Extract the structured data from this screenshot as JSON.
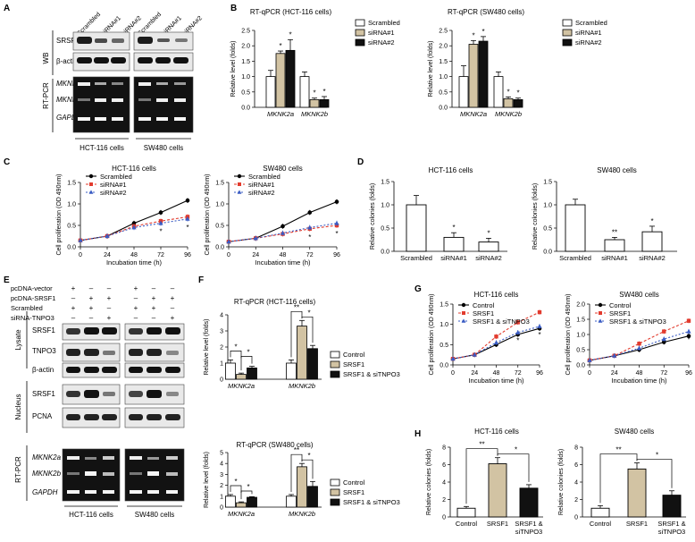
{
  "panel_letters": [
    "A",
    "B",
    "C",
    "D",
    "E",
    "F",
    "G",
    "H"
  ],
  "colors": {
    "scrambled": "#ffffff",
    "sirna1": "#d2c3a3",
    "sirna2": "#111111",
    "control": "#ffffff",
    "srsf1": "#d2c3a3",
    "srsf1_sitnpo3": "#111111",
    "line_black": "#000000",
    "line_red": "#e23b2e",
    "line_blue": "#3a5cc4"
  },
  "panel_a": {
    "lane_labels": [
      "Scrambled",
      "siRNA#1",
      "siRNA#2",
      "Scrambled",
      "siRNA#1",
      "siRNA#2"
    ],
    "group_wb": "WB",
    "group_rtpcr": "RT-PCR",
    "row_labels": [
      "SRSF1",
      "β-actin",
      "MKNK2a",
      "MKNK2b",
      "GAPDH"
    ],
    "cell_labels": [
      "HCT-116 cells",
      "SW480 cells"
    ]
  },
  "panel_e": {
    "conditions": [
      {
        "label": "pcDNA-vector",
        "signs": [
          "+",
          "–",
          "–",
          "+",
          "–",
          "–"
        ]
      },
      {
        "label": "pcDNA-SRSF1",
        "signs": [
          "–",
          "+",
          "+",
          "–",
          "+",
          "+"
        ]
      },
      {
        "label": "Scrambled",
        "signs": [
          "+",
          "+",
          "–",
          "+",
          "+",
          "–"
        ]
      },
      {
        "label": "siRNA-TNPO3",
        "signs": [
          "–",
          "–",
          "+",
          "–",
          "–",
          "+"
        ]
      }
    ],
    "group_lysate": "Lysate",
    "group_nucleus": "Nucleus",
    "group_rtpcr": "RT-PCR",
    "row_labels": [
      "SRSF1",
      "TNPO3",
      "β-actin",
      "SRSF1",
      "PCNA",
      "MKNK2a",
      "MKNK2b",
      "GAPDH"
    ],
    "cell_labels": [
      "HCT-116 cells",
      "SW480 cells"
    ]
  },
  "chart_data": [
    {
      "id": "B1",
      "type": "bar",
      "title": "RT-qPCR (HCT-116 cells)",
      "ylabel": "Relative level (folds)",
      "ylim": [
        0,
        2.5
      ],
      "yticks": [
        "0.0",
        "0.5",
        "1.0",
        "1.5",
        "2.0",
        "2.5"
      ],
      "categories": [
        "MKNK2a",
        "MKNK2b"
      ],
      "series": [
        {
          "name": "Scrambled",
          "values": [
            1.0,
            1.0
          ],
          "errors": [
            0.2,
            0.15
          ]
        },
        {
          "name": "siRNA#1",
          "values": [
            1.75,
            0.25
          ],
          "errors": [
            0.08,
            0.05
          ]
        },
        {
          "name": "siRNA#2",
          "values": [
            1.85,
            0.25
          ],
          "errors": [
            0.35,
            0.1
          ]
        }
      ],
      "annotations": [
        "*",
        "*",
        "*",
        "*"
      ]
    },
    {
      "id": "B2",
      "type": "bar",
      "title": "RT-qPCR (SW480 cells)",
      "ylabel": "Relative level (folds)",
      "ylim": [
        0,
        2.5
      ],
      "yticks": [
        "0.0",
        "0.5",
        "1.0",
        "1.5",
        "2.0",
        "2.5"
      ],
      "categories": [
        "MKNK2a",
        "MKNK2b"
      ],
      "series": [
        {
          "name": "Scrambled",
          "values": [
            1.0,
            1.0
          ],
          "errors": [
            0.35,
            0.15
          ]
        },
        {
          "name": "siRNA#1",
          "values": [
            2.05,
            0.28
          ],
          "errors": [
            0.12,
            0.06
          ]
        },
        {
          "name": "siRNA#2",
          "values": [
            2.15,
            0.25
          ],
          "errors": [
            0.15,
            0.05
          ]
        }
      ],
      "annotations": [
        "*",
        "*",
        "*",
        "*"
      ]
    },
    {
      "id": "C1",
      "type": "line",
      "title": "HCT-116 cells",
      "xlabel": "Incubation time (h)",
      "ylabel": "Cell proliferation (OD 490nm)",
      "x": [
        0,
        24,
        48,
        72,
        96
      ],
      "xlim": [
        0,
        96
      ],
      "ylim": [
        0,
        1.5
      ],
      "xticks": [
        "0",
        "24",
        "48",
        "72",
        "96"
      ],
      "yticks": [
        "0.0",
        "0.5",
        "1.0",
        "1.5"
      ],
      "series": [
        {
          "name": "Scrambled",
          "values": [
            0.15,
            0.25,
            0.55,
            0.8,
            1.08
          ]
        },
        {
          "name": "siRNA#1",
          "values": [
            0.15,
            0.25,
            0.48,
            0.6,
            0.7
          ]
        },
        {
          "name": "siRNA#2",
          "values": [
            0.15,
            0.25,
            0.45,
            0.55,
            0.65
          ]
        }
      ],
      "annotations": [
        "*",
        "*"
      ]
    },
    {
      "id": "C2",
      "type": "line",
      "title": "SW480 cells",
      "xlabel": "Incubation time (h)",
      "ylabel": "Cell proliferation (OD 490nm)",
      "x": [
        0,
        24,
        48,
        72,
        96
      ],
      "xlim": [
        0,
        96
      ],
      "ylim": [
        0,
        1.5
      ],
      "xticks": [
        "0",
        "24",
        "48",
        "72",
        "96"
      ],
      "yticks": [
        "0.0",
        "0.5",
        "1.0",
        "1.5"
      ],
      "series": [
        {
          "name": "Scrambled",
          "values": [
            0.12,
            0.2,
            0.48,
            0.8,
            1.05
          ]
        },
        {
          "name": "siRNA#1",
          "values": [
            0.12,
            0.2,
            0.3,
            0.42,
            0.5
          ]
        },
        {
          "name": "siRNA#2",
          "values": [
            0.12,
            0.2,
            0.32,
            0.45,
            0.55
          ]
        }
      ],
      "annotations": [
        "*",
        "*"
      ]
    },
    {
      "id": "D1",
      "type": "bar",
      "title": "HCT-116 cells",
      "ylabel": "Relative colonies (folds)",
      "ylim": [
        0,
        1.5
      ],
      "yticks": [
        "0.0",
        "0.5",
        "1.0",
        "1.5"
      ],
      "categories": [
        "Scrambled",
        "siRNA#1",
        "siRNA#2"
      ],
      "series": [
        {
          "name": "",
          "values": [
            1.0,
            0.3,
            0.2
          ],
          "errors": [
            0.2,
            0.1,
            0.08
          ]
        }
      ],
      "annotations": [
        "*",
        "*"
      ]
    },
    {
      "id": "D2",
      "type": "bar",
      "title": "SW480 cells",
      "ylabel": "Relative colonies (folds)",
      "ylim": [
        0,
        1.5
      ],
      "yticks": [
        "0.0",
        "0.5",
        "1.0",
        "1.5"
      ],
      "categories": [
        "Scrambled",
        "siRNA#1",
        "siRNA#2"
      ],
      "series": [
        {
          "name": "",
          "values": [
            1.0,
            0.25,
            0.42
          ],
          "errors": [
            0.12,
            0.05,
            0.12
          ]
        }
      ],
      "annotations": [
        "**",
        "*"
      ]
    },
    {
      "id": "F1",
      "type": "bar",
      "title": "RT-qPCR (HCT-116 cells)",
      "ylabel": "Relative level (folds)",
      "ylim": [
        0,
        4
      ],
      "yticks": [
        "0",
        "1",
        "2",
        "3",
        "4"
      ],
      "categories": [
        "MKNK2a",
        "MKNK2b"
      ],
      "series": [
        {
          "name": "Control",
          "values": [
            1.0,
            1.0
          ],
          "errors": [
            0.2,
            0.2
          ]
        },
        {
          "name": "SRSF1",
          "values": [
            0.3,
            3.3
          ],
          "errors": [
            0.08,
            0.35
          ]
        },
        {
          "name": "SRSF1 & siTNPO3",
          "values": [
            0.7,
            1.9
          ],
          "errors": [
            0.1,
            0.2
          ]
        }
      ],
      "annotations": [
        "*",
        "*",
        "**",
        "*"
      ]
    },
    {
      "id": "F2",
      "type": "bar",
      "title": "RT-qPCR (SW480 cells)",
      "ylabel": "Relative level (folds)",
      "ylim": [
        0,
        5
      ],
      "yticks": [
        "0",
        "1",
        "2",
        "3",
        "4",
        "5"
      ],
      "categories": [
        "MKNK2a",
        "MKNK2b"
      ],
      "series": [
        {
          "name": "Control",
          "values": [
            1.0,
            1.0
          ],
          "errors": [
            0.15,
            0.15
          ]
        },
        {
          "name": "SRSF1",
          "values": [
            0.4,
            3.7
          ],
          "errors": [
            0.08,
            0.3
          ]
        },
        {
          "name": "SRSF1 & siTNPO3",
          "values": [
            0.9,
            1.9
          ],
          "errors": [
            0.05,
            0.45
          ]
        }
      ],
      "annotations": [
        "*",
        "*",
        "**",
        "*"
      ]
    },
    {
      "id": "G1",
      "type": "line",
      "title": "HCT-116 cells",
      "xlabel": "Incubation time (h)",
      "ylabel": "Cell proliferation (OD 490nm)",
      "x": [
        0,
        24,
        48,
        72,
        96
      ],
      "xlim": [
        0,
        96
      ],
      "ylim": [
        0,
        1.5
      ],
      "xticks": [
        "0",
        "24",
        "48",
        "72",
        "96"
      ],
      "yticks": [
        "0.0",
        "0.5",
        "1.0",
        "1.5"
      ],
      "series": [
        {
          "name": "Control",
          "values": [
            0.15,
            0.25,
            0.5,
            0.75,
            0.9
          ]
        },
        {
          "name": "SRSF1",
          "values": [
            0.15,
            0.25,
            0.7,
            1.05,
            1.3
          ]
        },
        {
          "name": "SRSF1 & siTNPO3",
          "values": [
            0.15,
            0.25,
            0.55,
            0.8,
            0.95
          ]
        }
      ],
      "annotations": [
        "*",
        "*"
      ]
    },
    {
      "id": "G2",
      "type": "line",
      "title": "SW480 cells",
      "xlabel": "Incubation time (h)",
      "ylabel": "Cell proliferation (OD 490nm)",
      "x": [
        0,
        24,
        48,
        72,
        96
      ],
      "xlim": [
        0,
        96
      ],
      "ylim": [
        0,
        2.0
      ],
      "xticks": [
        "0",
        "24",
        "48",
        "72",
        "96"
      ],
      "yticks": [
        "0.0",
        "0.5",
        "1.0",
        "1.5",
        "2.0"
      ],
      "series": [
        {
          "name": "Control",
          "values": [
            0.15,
            0.3,
            0.5,
            0.75,
            0.95
          ]
        },
        {
          "name": "SRSF1",
          "values": [
            0.15,
            0.3,
            0.7,
            1.1,
            1.45
          ]
        },
        {
          "name": "SRSF1 & siTNPO3",
          "values": [
            0.15,
            0.3,
            0.55,
            0.85,
            1.1
          ]
        }
      ],
      "annotations": [
        "*"
      ]
    },
    {
      "id": "H1",
      "type": "bar",
      "title": "HCT-116 cells",
      "ylabel": "Relative colonies (folds)",
      "ylim": [
        0,
        8
      ],
      "yticks": [
        "0",
        "2",
        "4",
        "6",
        "8"
      ],
      "categories": [
        "Control",
        "SRSF1",
        "SRSF1 & siTNPO3"
      ],
      "series": [
        {
          "name": "",
          "values": [
            1.0,
            6.1,
            3.3
          ],
          "errors": [
            0.2,
            0.7,
            0.4
          ]
        }
      ],
      "annotations": [
        "**",
        "*"
      ]
    },
    {
      "id": "H2",
      "type": "bar",
      "title": "SW480 cells",
      "ylabel": "Relative colonies (folds)",
      "ylim": [
        0,
        8
      ],
      "yticks": [
        "0",
        "2",
        "4",
        "6",
        "8"
      ],
      "categories": [
        "Control",
        "SRSF1",
        "SRSF1 & siTNPO3"
      ],
      "series": [
        {
          "name": "",
          "values": [
            1.0,
            5.5,
            2.5
          ],
          "errors": [
            0.3,
            0.7,
            0.5
          ]
        }
      ],
      "annotations": [
        "**",
        "*"
      ]
    }
  ]
}
